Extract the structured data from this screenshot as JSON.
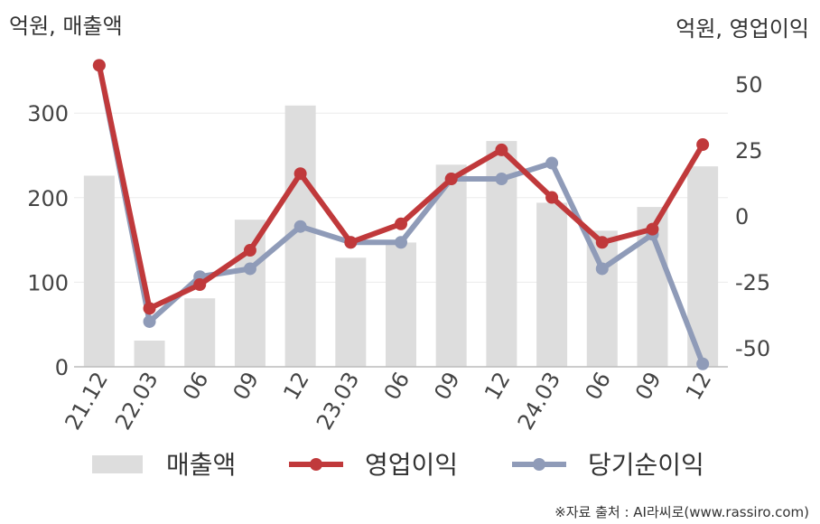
{
  "chart_data": {
    "type": "bar+line",
    "left_axis_title": "억원, 매출액",
    "right_axis_title": "억원, 영업이익",
    "categories": [
      "21.12",
      "22.03",
      "06",
      "09",
      "12",
      "23.03",
      "06",
      "09",
      "12",
      "24.03",
      "06",
      "09",
      "12"
    ],
    "left_axis": {
      "min": 0,
      "max": 350,
      "ticks": [
        0,
        100,
        200,
        300
      ]
    },
    "right_axis": {
      "min": -66,
      "max": 66,
      "ticks": [
        -50,
        -25,
        0,
        25,
        50
      ]
    },
    "series": [
      {
        "name": "매출액",
        "type": "bar",
        "axis": "left",
        "color": "#dddddd",
        "values": [
          226,
          31,
          81,
          174,
          309,
          129,
          147,
          239,
          267,
          194,
          161,
          189,
          237
        ]
      },
      {
        "name": "영업이익",
        "type": "line",
        "axis": "right",
        "color": "#c0393b",
        "values": [
          57,
          -35,
          -26,
          -13,
          16,
          -10,
          -3,
          14,
          25,
          7,
          -10,
          -5,
          27
        ]
      },
      {
        "name": "당기순이익",
        "type": "line",
        "axis": "right",
        "color": "#8f9bb8",
        "values": [
          57,
          -40,
          -23,
          -20,
          -4,
          -10,
          -10,
          14,
          14,
          20,
          -20,
          -7,
          -56
        ]
      }
    ],
    "legend_position": "bottom",
    "grid": true
  },
  "source_text": "※자료 출처 : AI라씨로(www.rassiro.com)"
}
